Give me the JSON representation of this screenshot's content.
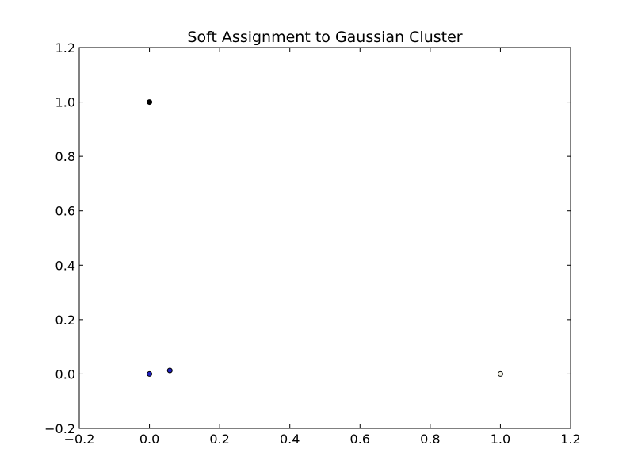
{
  "chart_data": {
    "type": "scatter",
    "title": "Soft Assignment to Gaussian Cluster",
    "xlabel": "",
    "ylabel": "",
    "xlim": [
      -0.2,
      1.2
    ],
    "ylim": [
      -0.2,
      1.2
    ],
    "xticks": [
      -0.2,
      0.0,
      0.2,
      0.4,
      0.6,
      0.8,
      1.0,
      1.2
    ],
    "yticks": [
      -0.2,
      0.0,
      0.2,
      0.4,
      0.6,
      0.8,
      1.0,
      1.2
    ],
    "xtick_labels": [
      "−0.2",
      "0.0",
      "0.2",
      "0.4",
      "0.6",
      "0.8",
      "1.0",
      "1.2"
    ],
    "ytick_labels": [
      "−0.2",
      "0.0",
      "0.2",
      "0.4",
      "0.6",
      "0.8",
      "1.0",
      "1.2"
    ],
    "grid": false,
    "points": [
      {
        "x": 0.0,
        "y": 1.0,
        "color": "#000000"
      },
      {
        "x": 0.0,
        "y": 0.0,
        "color": "#1f1fbf"
      },
      {
        "x": 0.058,
        "y": 0.013,
        "color": "#1f1fbf"
      },
      {
        "x": 1.0,
        "y": 0.0,
        "color": "#f5f5e8"
      }
    ]
  }
}
